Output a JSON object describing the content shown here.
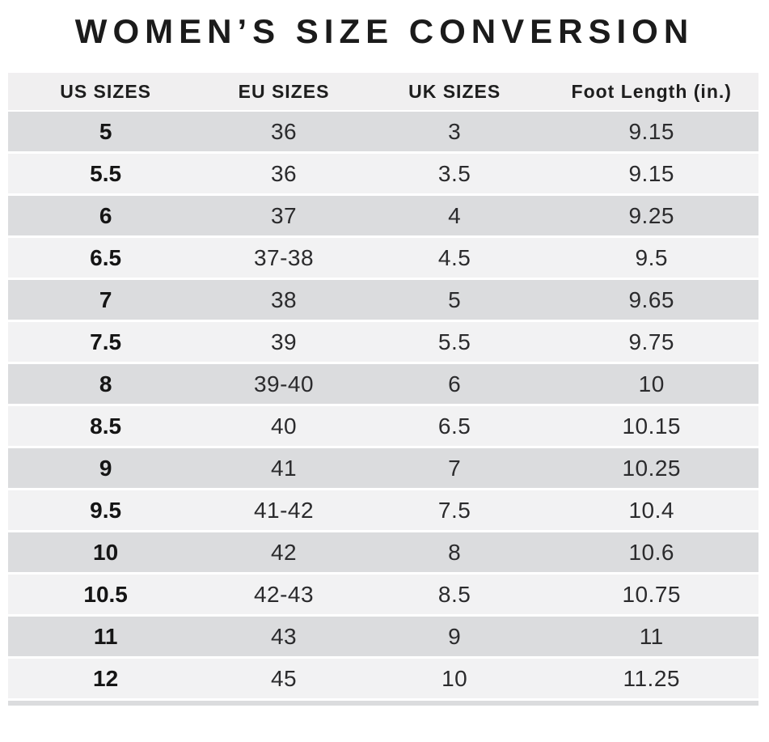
{
  "title": "WOMEN’S SIZE CONVERSION",
  "colors": {
    "page_bg": "#ffffff",
    "header_bg": "#f0eff0",
    "row_dark": "#dbdcde",
    "row_light": "#f2f2f3",
    "title_text": "#1b1b1b",
    "data_text": "#2b2b2d"
  },
  "table": {
    "headers": [
      "US SIZES",
      "EU SIZES",
      "UK SIZES",
      "Foot Length (in.)"
    ],
    "rows": [
      {
        "us": "5",
        "eu": "36",
        "uk": "3",
        "foot": "9.15"
      },
      {
        "us": "5.5",
        "eu": "36",
        "uk": "3.5",
        "foot": "9.15"
      },
      {
        "us": "6",
        "eu": "37",
        "uk": "4",
        "foot": "9.25"
      },
      {
        "us": "6.5",
        "eu": "37-38",
        "uk": "4.5",
        "foot": "9.5"
      },
      {
        "us": "7",
        "eu": "38",
        "uk": "5",
        "foot": "9.65"
      },
      {
        "us": "7.5",
        "eu": "39",
        "uk": "5.5",
        "foot": "9.75"
      },
      {
        "us": "8",
        "eu": "39-40",
        "uk": "6",
        "foot": "10"
      },
      {
        "us": "8.5",
        "eu": "40",
        "uk": "6.5",
        "foot": "10.15"
      },
      {
        "us": "9",
        "eu": "41",
        "uk": "7",
        "foot": "10.25"
      },
      {
        "us": "9.5",
        "eu": "41-42",
        "uk": "7.5",
        "foot": "10.4"
      },
      {
        "us": "10",
        "eu": "42",
        "uk": "8",
        "foot": "10.6"
      },
      {
        "us": "10.5",
        "eu": "42-43",
        "uk": "8.5",
        "foot": "10.75"
      },
      {
        "us": "11",
        "eu": "43",
        "uk": "9",
        "foot": "11"
      },
      {
        "us": "12",
        "eu": "45",
        "uk": "10",
        "foot": "11.25"
      }
    ]
  },
  "chart_data": {
    "type": "table",
    "title": "WOMEN’S SIZE CONVERSION",
    "columns": [
      "US SIZES",
      "EU SIZES",
      "UK SIZES",
      "Foot Length (in.)"
    ],
    "rows": [
      [
        "5",
        "36",
        "3",
        "9.15"
      ],
      [
        "5.5",
        "36",
        "3.5",
        "9.15"
      ],
      [
        "6",
        "37",
        "4",
        "9.25"
      ],
      [
        "6.5",
        "37-38",
        "4.5",
        "9.5"
      ],
      [
        "7",
        "38",
        "5",
        "9.65"
      ],
      [
        "7.5",
        "39",
        "5.5",
        "9.75"
      ],
      [
        "8",
        "39-40",
        "6",
        "10"
      ],
      [
        "8.5",
        "40",
        "6.5",
        "10.15"
      ],
      [
        "9",
        "41",
        "7",
        "10.25"
      ],
      [
        "9.5",
        "41-42",
        "7.5",
        "10.4"
      ],
      [
        "10",
        "42",
        "8",
        "10.6"
      ],
      [
        "10.5",
        "42-43",
        "8.5",
        "10.75"
      ],
      [
        "11",
        "43",
        "9",
        "11"
      ],
      [
        "12",
        "45",
        "10",
        "11.25"
      ]
    ],
    "layout": {
      "row_striping": [
        "dark",
        "light"
      ],
      "us_column_bold": true,
      "alignment": "center"
    }
  }
}
